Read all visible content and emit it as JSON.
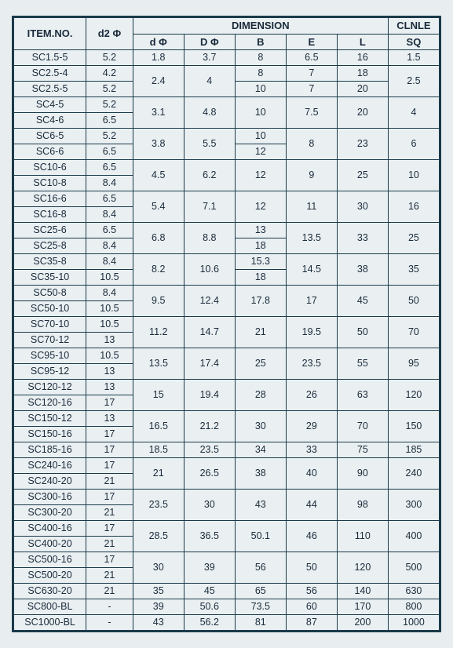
{
  "headers": {
    "item": "ITEM.NO.",
    "d2": "d2 Φ",
    "dimension": "DIMENSION",
    "d": "d Φ",
    "D": "D Φ",
    "B": "B",
    "E": "E",
    "L": "L",
    "clnle": "CLNLE",
    "sq": "SQ"
  },
  "rows": [
    {
      "item": "SC1.5-5",
      "d2": "5.2",
      "d": "1.8",
      "D": "3.7",
      "B": "8",
      "E": "6.5",
      "L": "16",
      "sq": "1.5"
    },
    {
      "item": "SC2.5-4",
      "d2": "4.2",
      "d": "2.4",
      "D": "4",
      "B": "8",
      "E": "7",
      "L": "18",
      "sq": "2.5",
      "span": 2,
      "dspan": 2,
      "Dspan": 2,
      "sqspan": 2
    },
    {
      "item": "SC2.5-5",
      "d2": "5.2",
      "B": "10",
      "E": "7",
      "L": "20"
    },
    {
      "item": "SC4-5",
      "d2": "5.2",
      "d": "3.1",
      "D": "4.8",
      "B": "10",
      "E": "7.5",
      "L": "20",
      "sq": "4",
      "span": 2,
      "dspan": 2,
      "Dspan": 2,
      "Bspan": 2,
      "Espan": 2,
      "Lspan": 2,
      "sqspan": 2
    },
    {
      "item": "SC4-6",
      "d2": "6.5"
    },
    {
      "item": "SC6-5",
      "d2": "5.2",
      "d": "3.8",
      "D": "5.5",
      "B": "10",
      "E": "8",
      "L": "23",
      "sq": "6",
      "span": 2,
      "dspan": 2,
      "Dspan": 2,
      "Espan": 2,
      "Lspan": 2,
      "sqspan": 2
    },
    {
      "item": "SC6-6",
      "d2": "6.5",
      "B": "12"
    },
    {
      "item": "SC10-6",
      "d2": "6.5",
      "d": "4.5",
      "D": "6.2",
      "B": "12",
      "E": "9",
      "L": "25",
      "sq": "10",
      "span": 2,
      "dspan": 2,
      "Dspan": 2,
      "Bspan": 2,
      "Espan": 2,
      "Lspan": 2,
      "sqspan": 2
    },
    {
      "item": "SC10-8",
      "d2": "8.4"
    },
    {
      "item": "SC16-6",
      "d2": "6.5",
      "d": "5.4",
      "D": "7.1",
      "B": "12",
      "E": "11",
      "L": "30",
      "sq": "16",
      "span": 2,
      "dspan": 2,
      "Dspan": 2,
      "Bspan": 2,
      "Espan": 2,
      "Lspan": 2,
      "sqspan": 2
    },
    {
      "item": "SC16-8",
      "d2": "8.4"
    },
    {
      "item": "SC25-6",
      "d2": "6.5",
      "d": "6.8",
      "D": "8.8",
      "B": "13",
      "E": "13.5",
      "L": "33",
      "sq": "25",
      "span": 2,
      "dspan": 2,
      "Dspan": 2,
      "Espan": 2,
      "Lspan": 2,
      "sqspan": 2
    },
    {
      "item": "SC25-8",
      "d2": "8.4",
      "B": "18"
    },
    {
      "item": "SC35-8",
      "d2": "8.4",
      "d": "8.2",
      "D": "10.6",
      "B": "15.3",
      "E": "14.5",
      "L": "38",
      "sq": "35",
      "span": 2,
      "dspan": 2,
      "Dspan": 2,
      "Espan": 2,
      "Lspan": 2,
      "sqspan": 2
    },
    {
      "item": "SC35-10",
      "d2": "10.5",
      "B": "18"
    },
    {
      "item": "SC50-8",
      "d2": "8.4",
      "d": "9.5",
      "D": "12.4",
      "B": "17.8",
      "E": "17",
      "L": "45",
      "sq": "50",
      "span": 2,
      "dspan": 2,
      "Dspan": 2,
      "Bspan": 2,
      "Espan": 2,
      "Lspan": 2,
      "sqspan": 2
    },
    {
      "item": "SC50-10",
      "d2": "10.5"
    },
    {
      "item": "SC70-10",
      "d2": "10.5",
      "d": "11.2",
      "D": "14.7",
      "B": "21",
      "E": "19.5",
      "L": "50",
      "sq": "70",
      "span": 2,
      "dspan": 2,
      "Dspan": 2,
      "Bspan": 2,
      "Espan": 2,
      "Lspan": 2,
      "sqspan": 2
    },
    {
      "item": "SC70-12",
      "d2": "13"
    },
    {
      "item": "SC95-10",
      "d2": "10.5",
      "d": "13.5",
      "D": "17.4",
      "B": "25",
      "E": "23.5",
      "L": "55",
      "sq": "95",
      "span": 2,
      "dspan": 2,
      "Dspan": 2,
      "Bspan": 2,
      "Espan": 2,
      "Lspan": 2,
      "sqspan": 2
    },
    {
      "item": "SC95-12",
      "d2": "13"
    },
    {
      "item": "SC120-12",
      "d2": "13",
      "d": "15",
      "D": "19.4",
      "B": "28",
      "E": "26",
      "L": "63",
      "sq": "120",
      "span": 2,
      "dspan": 2,
      "Dspan": 2,
      "Bspan": 2,
      "Espan": 2,
      "Lspan": 2,
      "sqspan": 2
    },
    {
      "item": "SC120-16",
      "d2": "17"
    },
    {
      "item": "SC150-12",
      "d2": "13",
      "d": "16.5",
      "D": "21.2",
      "B": "30",
      "E": "29",
      "L": "70",
      "sq": "150",
      "span": 2,
      "dspan": 2,
      "Dspan": 2,
      "Bspan": 2,
      "Espan": 2,
      "Lspan": 2,
      "sqspan": 2
    },
    {
      "item": "SC150-16",
      "d2": "17"
    },
    {
      "item": "SC185-16",
      "d2": "17",
      "d": "18.5",
      "D": "23.5",
      "B": "34",
      "E": "33",
      "L": "75",
      "sq": "185"
    },
    {
      "item": "SC240-16",
      "d2": "17",
      "d": "21",
      "D": "26.5",
      "B": "38",
      "E": "40",
      "L": "90",
      "sq": "240",
      "span": 2,
      "dspan": 2,
      "Dspan": 2,
      "Bspan": 2,
      "Espan": 2,
      "Lspan": 2,
      "sqspan": 2
    },
    {
      "item": "SC240-20",
      "d2": "21"
    },
    {
      "item": "SC300-16",
      "d2": "17",
      "d": "23.5",
      "D": "30",
      "B": "43",
      "E": "44",
      "L": "98",
      "sq": "300",
      "span": 2,
      "dspan": 2,
      "Dspan": 2,
      "Bspan": 2,
      "Espan": 2,
      "Lspan": 2,
      "sqspan": 2
    },
    {
      "item": "SC300-20",
      "d2": "21"
    },
    {
      "item": "SC400-16",
      "d2": "17",
      "d": "28.5",
      "D": "36.5",
      "B": "50.1",
      "E": "46",
      "L": "110",
      "sq": "400",
      "span": 2,
      "dspan": 2,
      "Dspan": 2,
      "Bspan": 2,
      "Espan": 2,
      "Lspan": 2,
      "sqspan": 2
    },
    {
      "item": "SC400-20",
      "d2": "21"
    },
    {
      "item": "SC500-16",
      "d2": "17",
      "d": "30",
      "D": "39",
      "B": "56",
      "E": "50",
      "L": "120",
      "sq": "500",
      "span": 2,
      "dspan": 2,
      "Dspan": 2,
      "Bspan": 2,
      "Espan": 2,
      "Lspan": 2,
      "sqspan": 2
    },
    {
      "item": "SC500-20",
      "d2": "21"
    },
    {
      "item": "SC630-20",
      "d2": "21",
      "d": "35",
      "D": "45",
      "B": "65",
      "E": "56",
      "L": "140",
      "sq": "630"
    },
    {
      "item": "SC800-BL",
      "d2": "-",
      "d": "39",
      "D": "50.6",
      "B": "73.5",
      "E": "60",
      "L": "170",
      "sq": "800"
    },
    {
      "item": "SC1000-BL",
      "d2": "-",
      "d": "43",
      "D": "56.2",
      "B": "81",
      "E": "87",
      "L": "200",
      "sq": "1000"
    }
  ]
}
